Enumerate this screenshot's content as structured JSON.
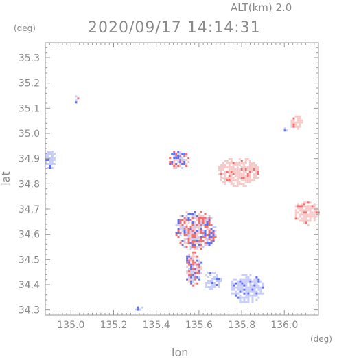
{
  "header": {
    "altitude_label": "ALT(km)  2.0",
    "timestamp": "2020/09/17  14:14:31",
    "deg_unit_y": "(deg)",
    "deg_unit_x": "(deg)"
  },
  "axes": {
    "xlabel": "lon",
    "ylabel": "lat",
    "x_ticks": [
      "135.0",
      "135.2",
      "135.4",
      "135.6",
      "135.8",
      "136.0"
    ],
    "x_tick_values": [
      135.0,
      135.2,
      135.4,
      135.6,
      135.8,
      136.0
    ],
    "y_ticks": [
      "35.3",
      "35.2",
      "35.1",
      "35.0",
      "34.9",
      "34.8",
      "34.7",
      "34.6",
      "34.5",
      "34.4",
      "34.3"
    ],
    "y_tick_values": [
      35.3,
      35.2,
      35.1,
      35.0,
      34.9,
      34.8,
      34.7,
      34.6,
      34.5,
      34.4,
      34.3
    ],
    "xlim": [
      134.88,
      136.16
    ],
    "ylim": [
      34.28,
      35.36
    ]
  },
  "colors": {
    "frame": "#9a9a9a",
    "positive": "#f07070",
    "negative": "#6070f0",
    "light_positive": "#f7caca",
    "light_negative": "#c8cdf7"
  },
  "echo_regions": [
    {
      "name": "west-edge",
      "lon": 134.9,
      "lat": 34.9,
      "rx": 0.03,
      "ry": 0.04,
      "tone": "light_negative"
    },
    {
      "name": "northeast-upper",
      "lon": 136.05,
      "lat": 35.05,
      "rx": 0.03,
      "ry": 0.03,
      "tone": "light_positive"
    },
    {
      "name": "northeast-small",
      "lon": 136.0,
      "lat": 35.02,
      "rx": 0.012,
      "ry": 0.012,
      "tone": "light_negative"
    },
    {
      "name": "east-edge",
      "lon": 136.1,
      "lat": 34.69,
      "rx": 0.06,
      "ry": 0.05,
      "tone": "light_positive"
    },
    {
      "name": "north-cluster",
      "lon": 135.78,
      "lat": 34.85,
      "rx": 0.1,
      "ry": 0.06,
      "tone": "light_positive"
    },
    {
      "name": "central-main",
      "lon": 135.58,
      "lat": 34.62,
      "rx": 0.1,
      "ry": 0.08,
      "tone": "mixed"
    },
    {
      "name": "central-south",
      "lon": 135.57,
      "lat": 34.47,
      "rx": 0.04,
      "ry": 0.07,
      "tone": "mixed"
    },
    {
      "name": "south-right",
      "lon": 135.82,
      "lat": 34.39,
      "rx": 0.08,
      "ry": 0.06,
      "tone": "light_negative"
    },
    {
      "name": "south-mid",
      "lon": 135.66,
      "lat": 34.42,
      "rx": 0.04,
      "ry": 0.04,
      "tone": "light_negative"
    },
    {
      "name": "southwest-dot",
      "lon": 135.31,
      "lat": 34.31,
      "rx": 0.02,
      "ry": 0.012,
      "tone": "light_negative"
    },
    {
      "name": "upper-left-streak",
      "lon": 135.02,
      "lat": 35.14,
      "rx": 0.01,
      "ry": 0.02,
      "tone": "mixed"
    },
    {
      "name": "mid-north-scatter",
      "lon": 135.5,
      "lat": 34.9,
      "rx": 0.05,
      "ry": 0.04,
      "tone": "mixed"
    }
  ]
}
